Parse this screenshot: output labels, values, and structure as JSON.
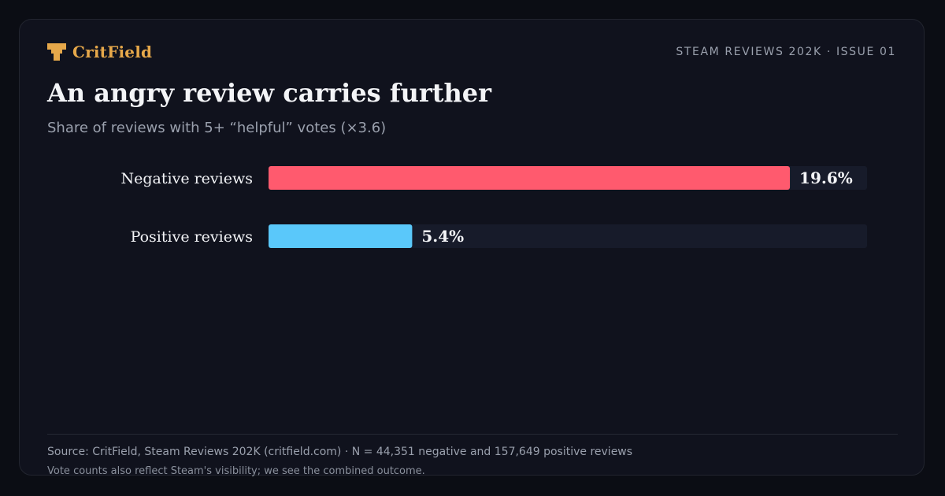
{
  "brand": {
    "name": "CritField",
    "icon": "anvil-icon",
    "color": "#e6a84a"
  },
  "issue_label": "STEAM REVIEWS 202K · ISSUE 01",
  "chart_data": {
    "type": "bar",
    "orientation": "horizontal",
    "title": "An angry review carries further",
    "subtitle": "Share of reviews with 5+ “helpful” votes (×3.6)",
    "categories": [
      "Negative reviews",
      "Positive reviews"
    ],
    "values": [
      19.6,
      5.4
    ],
    "value_labels": [
      "19.6%",
      "5.4%"
    ],
    "colors": [
      "#ff5a6e",
      "#5ac8fa"
    ],
    "track_color": "#171b2a",
    "xlim": [
      0,
      22.5
    ],
    "grid": false,
    "legend": "none"
  },
  "footer": {
    "source": "Source: CritField, Steam Reviews 202K (critfield.com) · N = 44,351 negative and 157,649 positive reviews",
    "note": "Vote counts also reflect Steam's visibility; we see the combined outcome."
  }
}
